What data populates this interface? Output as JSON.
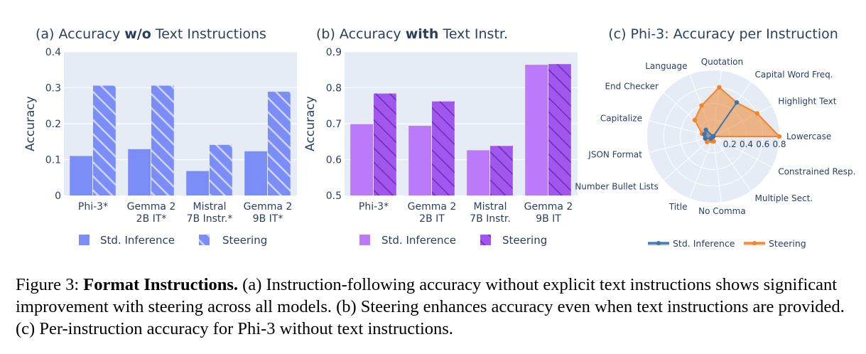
{
  "chart_data": [
    {
      "type": "bar",
      "title_prefix": "(a) Accuracy ",
      "title_bold": "w/o",
      "title_suffix": " Text Instructions",
      "ylabel": "Accuracy",
      "ylim": [
        0,
        0.4
      ],
      "yticks": [
        "0",
        "0.1",
        "0.2",
        "0.3",
        "0.4"
      ],
      "categories": [
        [
          "Phi-3*"
        ],
        [
          "Gemma 2",
          "2B IT*"
        ],
        [
          "Mistral",
          "7B Instr.*"
        ],
        [
          "Gemma 2",
          "9B IT*"
        ]
      ],
      "series": [
        {
          "name": "Std. Inference",
          "values": [
            0.11,
            0.129,
            0.068,
            0.123
          ]
        },
        {
          "name": "Steering",
          "values": [
            0.306,
            0.306,
            0.141,
            0.289
          ]
        }
      ]
    },
    {
      "type": "bar",
      "title_prefix": "(b) Accuracy ",
      "title_bold": "with",
      "title_suffix": " Text Instr.",
      "ylabel": "Accuracy",
      "ylim": [
        0.5,
        0.9
      ],
      "yticks": [
        "0.5",
        "0.6",
        "0.7",
        "0.8",
        "0.9"
      ],
      "categories": [
        [
          "Phi-3*"
        ],
        [
          "Gemma 2",
          "2B IT"
        ],
        [
          "Mistral",
          "7B Instr."
        ],
        [
          "Gemma 2",
          "9B IT"
        ]
      ],
      "series": [
        {
          "name": "Std. Inference",
          "values": [
            0.699,
            0.694,
            0.626,
            0.864
          ]
        },
        {
          "name": "Steering",
          "values": [
            0.784,
            0.762,
            0.638,
            0.866
          ]
        }
      ]
    },
    {
      "type": "radar",
      "title": "(c) Phi-3: Accuracy per Instruction",
      "categories": [
        "Lowercase",
        "Highlight Text",
        "Capital Word Freq.",
        "Quotation",
        "Language",
        "End Checker",
        "Capitalize",
        "JSON Format",
        "Number Bullet Lists",
        "Title",
        "No Comma",
        "Multiple Sect.",
        "Constrained Resp."
      ],
      "radial_range": [
        0,
        0.8
      ],
      "radial_ticks": [
        "0.2",
        "0.4",
        "0.6",
        "0.8"
      ],
      "series": [
        {
          "name": "Std. Inference",
          "values": [
            0.0,
            0.0,
            0.5,
            0.0,
            0.0,
            0.12,
            0.11,
            0.1,
            0.04,
            0.0,
            0.0,
            0.0,
            0.0
          ]
        },
        {
          "name": "Steering",
          "values": [
            0.8,
            0.6,
            0.5,
            0.6,
            0.4,
            0.3,
            0.14,
            0.1,
            0.1,
            0.06,
            0.06,
            0.0,
            0.0
          ]
        }
      ]
    }
  ],
  "colors": {
    "std_a": "#7b8ef7",
    "steer_a": "#7b8ef7",
    "std_b": "#bb7af9",
    "steer_b": "#a156ee",
    "plot_bg": "#e5ecf6",
    "radar_std": "#3f74ad",
    "radar_steer": "#f0862b"
  },
  "caption": {
    "label": "Figure 3: ",
    "bold": "Format Instructions.",
    "text": " (a) Instruction-following accuracy without explicit text instructions shows significant improvement with steering across all models. (b) Steering enhances accuracy even when text instructions are provided. (c) Per-instruction accuracy for Phi-3 without text instructions."
  }
}
